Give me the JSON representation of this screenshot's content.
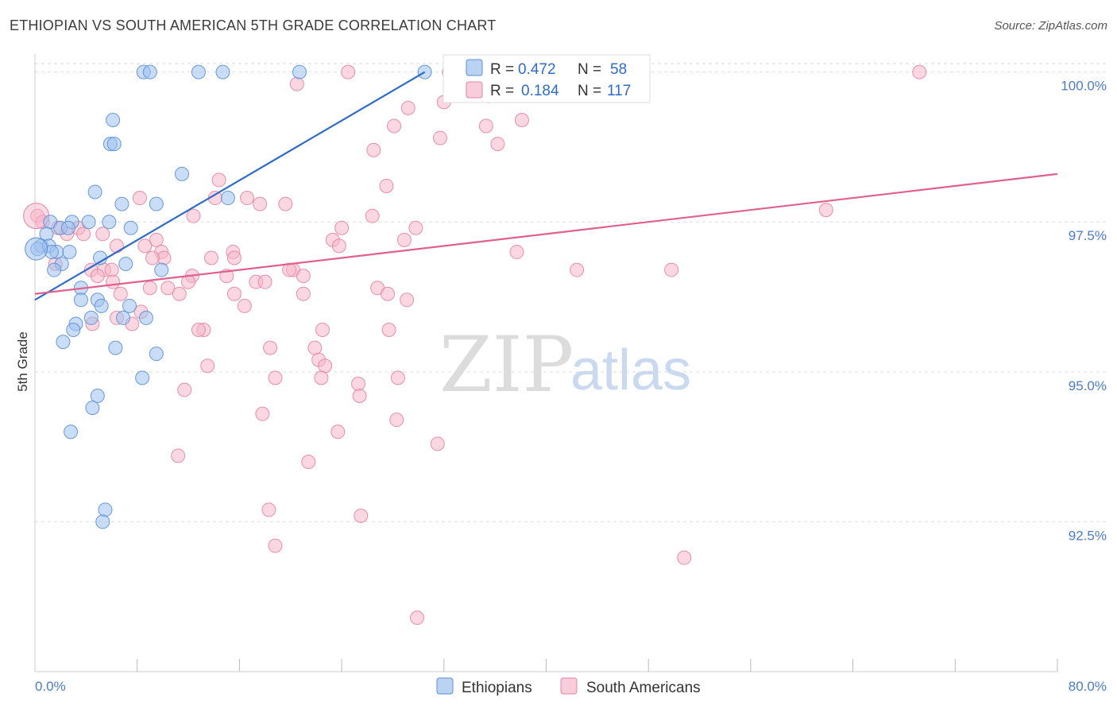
{
  "title": "ETHIOPIAN VS SOUTH AMERICAN 5TH GRADE CORRELATION CHART",
  "source": "Source: ZipAtlas.com",
  "watermark": {
    "zip": "ZIP",
    "atlas": "atlas"
  },
  "colors": {
    "blue_fill": "#9ec1ee",
    "blue_stroke": "#5b8fd6",
    "blue_line": "#2f6cc8",
    "pink_fill": "#f5b6c9",
    "pink_stroke": "#e684a5",
    "pink_line": "#e0608e",
    "grid": "#dddddd",
    "tick_text": "#4a7cc9"
  },
  "legend": {
    "rows": [
      {
        "r_label": "R = ",
        "r_value": "0.472",
        "n_label": "N = ",
        "n_value": "58",
        "series": "blue"
      },
      {
        "r_label": "R = ",
        "r_value": "0.184",
        "n_label": "N = ",
        "n_value": "117",
        "series": "pink"
      }
    ]
  },
  "chart_data": {
    "type": "scatter",
    "title": "ETHIOPIAN VS SOUTH AMERICAN 5TH GRADE CORRELATION CHART",
    "xlabel": "",
    "ylabel": "5th Grade",
    "xlim": [
      0,
      80
    ],
    "ylim": [
      90.0,
      100.3
    ],
    "x_tick_labels": [
      "0.0%",
      "80.0%"
    ],
    "y_ticks": [
      {
        "value": 92.5,
        "label": "92.5%"
      },
      {
        "value": 95.0,
        "label": "95.0%"
      },
      {
        "value": 97.5,
        "label": "97.5%"
      },
      {
        "value": 100.0,
        "label": "100.0%"
      }
    ],
    "grid": "horizontal dashed",
    "legend_position": "top-center",
    "series": [
      {
        "name": "Ethiopians",
        "color": "blue",
        "r": 0.472,
        "n": 58,
        "trend": {
          "x": [
            0,
            30.5
          ],
          "y": [
            96.2,
            100.0
          ]
        },
        "points": [
          [
            8.5,
            100.0
          ],
          [
            9.0,
            100.0
          ],
          [
            12.8,
            100.0
          ],
          [
            14.7,
            100.0
          ],
          [
            20.7,
            100.0
          ],
          [
            30.5,
            100.0
          ],
          [
            6.1,
            99.2
          ],
          [
            5.9,
            98.8
          ],
          [
            6.2,
            98.8
          ],
          [
            11.5,
            98.3
          ],
          [
            4.7,
            98.0
          ],
          [
            6.8,
            97.8
          ],
          [
            9.5,
            97.8
          ],
          [
            15.1,
            97.9
          ],
          [
            1.2,
            97.5
          ],
          [
            2.9,
            97.5
          ],
          [
            4.2,
            97.5
          ],
          [
            2.0,
            97.4
          ],
          [
            2.6,
            97.4
          ],
          [
            5.8,
            97.5
          ],
          [
            7.5,
            97.4
          ],
          [
            0.9,
            97.3
          ],
          [
            0.5,
            97.1
          ],
          [
            0.2,
            97.05
          ],
          [
            1.1,
            97.1
          ],
          [
            1.7,
            97.0
          ],
          [
            1.3,
            97.0
          ],
          [
            2.7,
            97.0
          ],
          [
            5.1,
            96.9
          ],
          [
            2.1,
            96.8
          ],
          [
            7.1,
            96.8
          ],
          [
            1.5,
            96.7
          ],
          [
            9.9,
            96.7
          ],
          [
            3.6,
            96.4
          ],
          [
            3.6,
            96.2
          ],
          [
            4.9,
            96.2
          ],
          [
            7.4,
            96.1
          ],
          [
            5.2,
            96.1
          ],
          [
            8.7,
            95.9
          ],
          [
            6.9,
            95.9
          ],
          [
            4.4,
            95.9
          ],
          [
            3.2,
            95.8
          ],
          [
            3.0,
            95.7
          ],
          [
            2.2,
            95.5
          ],
          [
            6.3,
            95.4
          ],
          [
            9.5,
            95.3
          ],
          [
            8.4,
            94.9
          ],
          [
            4.9,
            94.6
          ],
          [
            4.5,
            94.4
          ],
          [
            2.8,
            94.0
          ],
          [
            5.5,
            92.7
          ],
          [
            5.3,
            92.5
          ]
        ]
      },
      {
        "name": "South Americans",
        "color": "pink",
        "r": 0.184,
        "n": 117,
        "trend": {
          "x": [
            0,
            80
          ],
          "y": [
            96.3,
            98.3
          ]
        },
        "points": [
          [
            24.5,
            100.0
          ],
          [
            32.4,
            100.0
          ],
          [
            38.2,
            100.0
          ],
          [
            69.2,
            100.0
          ],
          [
            20.5,
            99.8
          ],
          [
            38.8,
            99.8
          ],
          [
            32.0,
            99.5
          ],
          [
            35.5,
            99.6
          ],
          [
            29.2,
            99.4
          ],
          [
            28.1,
            99.1
          ],
          [
            38.1,
            99.2
          ],
          [
            35.3,
            99.1
          ],
          [
            31.7,
            98.9
          ],
          [
            36.2,
            98.8
          ],
          [
            26.5,
            98.7
          ],
          [
            14.4,
            98.2
          ],
          [
            27.5,
            98.1
          ],
          [
            14.1,
            97.9
          ],
          [
            16.6,
            97.9
          ],
          [
            8.2,
            97.9
          ],
          [
            17.6,
            97.8
          ],
          [
            19.6,
            97.8
          ],
          [
            0.2,
            97.6
          ],
          [
            0.6,
            97.5
          ],
          [
            12.4,
            97.6
          ],
          [
            26.4,
            97.6
          ],
          [
            61.9,
            97.7
          ],
          [
            24.0,
            97.4
          ],
          [
            29.8,
            97.4
          ],
          [
            28.9,
            97.2
          ],
          [
            1.8,
            97.4
          ],
          [
            3.4,
            97.4
          ],
          [
            3.8,
            97.3
          ],
          [
            5.3,
            97.3
          ],
          [
            2.5,
            97.3
          ],
          [
            9.5,
            97.2
          ],
          [
            23.3,
            97.2
          ],
          [
            23.8,
            97.1
          ],
          [
            8.6,
            97.1
          ],
          [
            6.4,
            97.1
          ],
          [
            9.9,
            97.0
          ],
          [
            15.5,
            97.0
          ],
          [
            15.6,
            96.9
          ],
          [
            37.7,
            97.0
          ],
          [
            10.1,
            96.9
          ],
          [
            13.8,
            96.9
          ],
          [
            9.2,
            96.9
          ],
          [
            1.6,
            96.8
          ],
          [
            20.2,
            96.7
          ],
          [
            19.9,
            96.7
          ],
          [
            4.4,
            96.7
          ],
          [
            5.4,
            96.7
          ],
          [
            6.0,
            96.7
          ],
          [
            42.4,
            96.7
          ],
          [
            49.8,
            96.7
          ],
          [
            15.0,
            96.6
          ],
          [
            12.3,
            96.6
          ],
          [
            21.0,
            96.6
          ],
          [
            17.3,
            96.5
          ],
          [
            18.0,
            96.5
          ],
          [
            6.1,
            96.5
          ],
          [
            4.9,
            96.6
          ],
          [
            9.0,
            96.4
          ],
          [
            10.4,
            96.4
          ],
          [
            12.0,
            96.5
          ],
          [
            6.7,
            96.3
          ],
          [
            11.3,
            96.3
          ],
          [
            15.6,
            96.3
          ],
          [
            21.0,
            96.3
          ],
          [
            26.8,
            96.4
          ],
          [
            27.6,
            96.3
          ],
          [
            29.1,
            96.2
          ],
          [
            16.4,
            96.1
          ],
          [
            8.3,
            96.0
          ],
          [
            6.4,
            95.9
          ],
          [
            4.5,
            95.8
          ],
          [
            7.6,
            95.8
          ],
          [
            13.2,
            95.7
          ],
          [
            12.8,
            95.7
          ],
          [
            22.5,
            95.7
          ],
          [
            27.7,
            95.7
          ],
          [
            18.4,
            95.4
          ],
          [
            21.9,
            95.4
          ],
          [
            13.5,
            95.1
          ],
          [
            22.2,
            95.2
          ],
          [
            22.7,
            95.1
          ],
          [
            18.8,
            94.9
          ],
          [
            28.4,
            94.9
          ],
          [
            22.4,
            94.9
          ],
          [
            25.3,
            94.8
          ],
          [
            11.7,
            94.7
          ],
          [
            25.4,
            94.6
          ],
          [
            17.8,
            94.3
          ],
          [
            28.3,
            94.2
          ],
          [
            23.7,
            94.0
          ],
          [
            31.5,
            93.8
          ],
          [
            11.2,
            93.6
          ],
          [
            21.4,
            93.5
          ],
          [
            18.3,
            92.7
          ],
          [
            25.5,
            92.6
          ],
          [
            18.8,
            92.1
          ],
          [
            50.8,
            91.9
          ],
          [
            29.9,
            90.9
          ]
        ]
      }
    ]
  },
  "bottom_legend": [
    {
      "label": "Ethiopians",
      "series": "blue"
    },
    {
      "label": "South Americans",
      "series": "pink"
    }
  ]
}
